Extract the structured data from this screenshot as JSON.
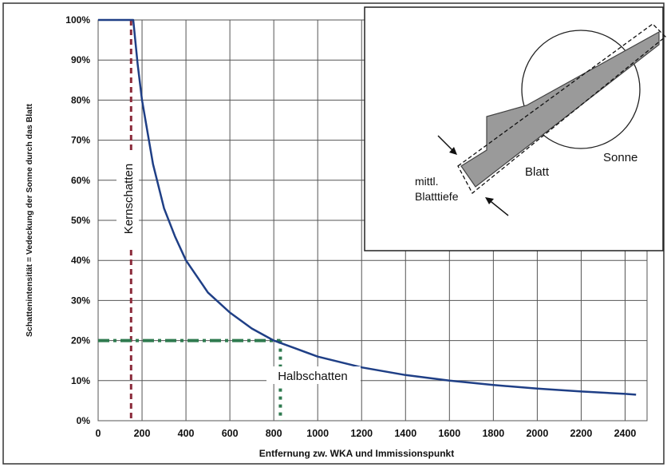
{
  "chart_data": {
    "type": "line",
    "xlabel": "Entfernung zw. WKA und Immissionspunkt",
    "ylabel": "Schattenintensität = Vedeckung der Sonne durch das Blatt",
    "xlim": [
      0,
      2500
    ],
    "ylim": [
      0,
      100
    ],
    "x_ticks": [
      0,
      200,
      400,
      600,
      800,
      1000,
      1200,
      1400,
      1600,
      1800,
      2000,
      2200,
      2400
    ],
    "x_tick_labels": [
      "0",
      "200",
      "400",
      "600",
      "800",
      "1000",
      "1200",
      "1400",
      "1600",
      "1800",
      "2000",
      "2200",
      "2400"
    ],
    "y_ticks": [
      0,
      10,
      20,
      30,
      40,
      50,
      60,
      70,
      80,
      90,
      100
    ],
    "y_tick_labels": [
      "0%",
      "10%",
      "20%",
      "30%",
      "40%",
      "50%",
      "60%",
      "70%",
      "80%",
      "90%",
      "100%"
    ],
    "grid": true,
    "series": [
      {
        "color": "#1f3f86",
        "x": [
          0,
          160,
          180,
          200,
          250,
          300,
          350,
          400,
          500,
          600,
          700,
          800,
          900,
          1000,
          1200,
          1400,
          1600,
          1800,
          2000,
          2200,
          2400,
          2450
        ],
        "y": [
          100,
          100,
          89,
          80,
          64,
          53,
          46,
          40,
          32,
          27,
          23,
          20,
          18,
          16,
          13.3,
          11.4,
          10,
          8.9,
          8,
          7.3,
          6.7,
          6.5
        ]
      }
    ],
    "reference_lines": {
      "kernschatten_x": 150,
      "halbschatten_x": 830,
      "level_y": 20,
      "kernschatten_color": "#8b2a3a",
      "halbschatten_color": "#2f7a4f"
    },
    "annotations": {
      "kernschatten": "Kernschatten",
      "halbschatten": "Halbschatten"
    },
    "inset": {
      "sonne": "Sonne",
      "blatt": "Blatt",
      "blatttiefe_line1": "mittl.",
      "blatttiefe_line2": "Blatttiefe"
    }
  }
}
